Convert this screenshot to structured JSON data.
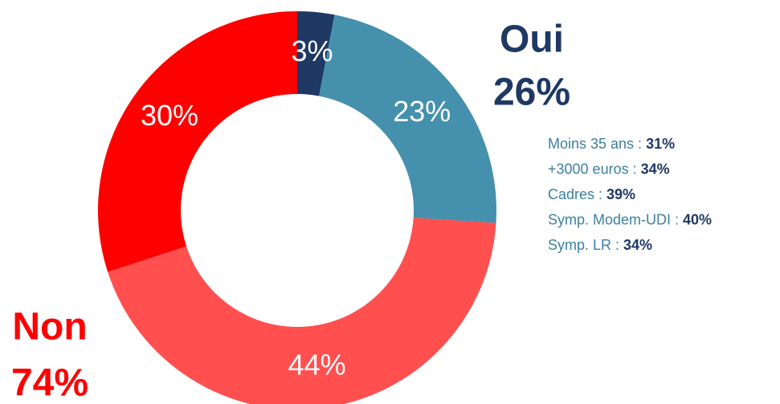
{
  "chart_data": {
    "type": "donut",
    "values": [
      3,
      23,
      44,
      30
    ],
    "value_labels": [
      "3%",
      "23%",
      "44%",
      "30%"
    ],
    "colors": [
      "#1f3864",
      "#4590ad",
      "#ff4f4f",
      "#ff0000"
    ],
    "groups": [
      {
        "name": "Oui",
        "label": "26%",
        "color": "#1f3864"
      },
      {
        "name": "Non",
        "label": "74%",
        "color": "#ff0000"
      }
    ],
    "notes": [
      {
        "label": "Moins 35 ans :",
        "value": "31%"
      },
      {
        "label": "+3000 euros :",
        "value": "34%"
      },
      {
        "label": "Cadres :",
        "value": "39%"
      },
      {
        "label": "Symp. Modem-UDI :",
        "value": "40%"
      },
      {
        "label": "Symp. LR :",
        "value": "34%"
      }
    ]
  }
}
